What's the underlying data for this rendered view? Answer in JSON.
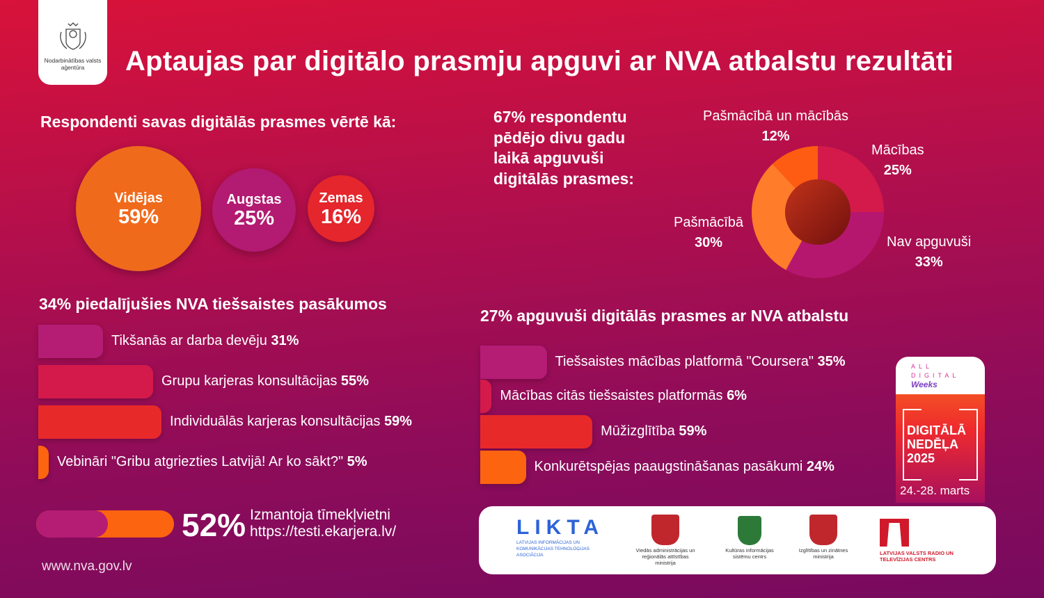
{
  "header": {
    "logo_text": "Nodarbinātības valsts aģentūra",
    "title": "Aptaujas par digitālo prasmju apguvi ar NVA atbalstu rezultāti"
  },
  "self_assessment": {
    "heading": "Respondenti savas digitālās prasmes vērtē kā:",
    "items": [
      {
        "label": "Vidējas",
        "value": "59%",
        "color": "#f06a1c"
      },
      {
        "label": "Augstas",
        "value": "25%",
        "color": "#b31a72"
      },
      {
        "label": "Zemas",
        "value": "16%",
        "color": "#e5262c"
      }
    ]
  },
  "donut": {
    "heading": "67% respondentu pēdējo divu gadu laikā apguvuši digitālās prasmes:",
    "segments": [
      {
        "label": "Mācības",
        "value_label": "25%",
        "value": 25,
        "color": "#d41a4a"
      },
      {
        "label": "Nav apguvuši",
        "value_label": "33%",
        "value": 33,
        "color": "#b5176f"
      },
      {
        "label": "Pašmācībā",
        "value_label": "30%",
        "value": 30,
        "color": "#fe7c2a"
      },
      {
        "label": "Pašmācībā un mācībās",
        "value_label": "12%",
        "value": 12,
        "color": "#fd5c12"
      }
    ]
  },
  "events": {
    "heading": "34% piedalījušies NVA tiešsaistes pasākumos",
    "items": [
      {
        "label": "Tikšanās ar darba devēju",
        "value_label": "31%",
        "value": 31,
        "color": "#b51c74"
      },
      {
        "label": "Grupu karjeras konsultācijas",
        "value_label": "55%",
        "value": 55,
        "color": "#d41a4a"
      },
      {
        "label": "Individuālās karjeras konsultācijas",
        "value_label": "59%",
        "value": 59,
        "color": "#e8292a"
      },
      {
        "label": "Vebināri \"Gribu atgriezties Latvijā! Ar ko sākt?\"",
        "value_label": "5%",
        "value": 5,
        "color": "#fd6410"
      }
    ]
  },
  "nva_support": {
    "heading": "27% apguvuši digitālās prasmes ar NVA atbalstu",
    "items": [
      {
        "label": "Tiešsaistes mācības platformā \"Coursera\"",
        "value_label": "35%",
        "value": 35,
        "color": "#b51c74"
      },
      {
        "label": "Mācības citās tiešsaistes platformās",
        "value_label": "6%",
        "value": 6,
        "color": "#d41a4a"
      },
      {
        "label": "Mūžizglītība",
        "value_label": "59%",
        "value": 59,
        "color": "#e8292a"
      },
      {
        "label": "Konkurētspējas paaugstināšanas pasākumi",
        "value_label": "24%",
        "value": 24,
        "color": "#fd6410"
      }
    ]
  },
  "website_use": {
    "value_label": "52%",
    "value": 52,
    "line1": "Izmantoja tīmekļvietni",
    "line2": "https://testi.ekarjera.lv/"
  },
  "footer": {
    "url": "www.nva.gov.lv"
  },
  "badge": {
    "brand_line1": "ALL",
    "brand_line2": "DIGITAL",
    "brand_line3": "Weeks",
    "title_line1": "DIGITĀLĀ",
    "title_line2": "NEDĒĻA",
    "title_line3": "2025",
    "dates": "24.-28. marts"
  },
  "partners": [
    {
      "name": "LIKTA",
      "sub": "LATVIJAS INFORMĀCIJAS UN KOMUNIKĀCIJAS TEHNOLOĢIJAS ASOCIĀCIJA"
    },
    {
      "name": "Viedās administrācijas un reģionālās attīstības ministrija"
    },
    {
      "name": "Kultūras informācijas sistēmu centrs"
    },
    {
      "name": "Izglītības un zinātnes ministrija"
    },
    {
      "name": "LATVIJAS VALSTS RADIO UN TELEVĪZIJAS CENTRS"
    }
  ]
}
